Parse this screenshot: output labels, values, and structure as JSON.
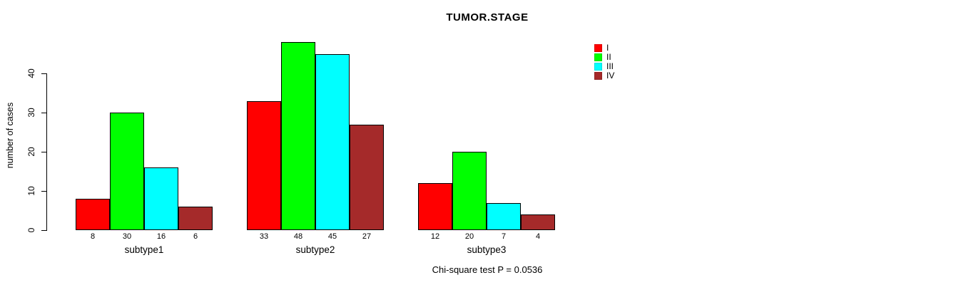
{
  "title": "TUMOR.STAGE",
  "ylabel": "number of cases",
  "footer": "Chi-square test P = 0.0536",
  "chart_data": {
    "type": "bar",
    "title": "TUMOR.STAGE",
    "xlabel": "",
    "ylabel": "number of cases",
    "categories": [
      "subtype1",
      "subtype2",
      "subtype3"
    ],
    "series": [
      {
        "name": "I",
        "color": "#FF0000",
        "values": [
          8,
          33,
          12
        ]
      },
      {
        "name": "II",
        "color": "#00FF00",
        "values": [
          30,
          48,
          20
        ]
      },
      {
        "name": "III",
        "color": "#00FFFF",
        "values": [
          16,
          45,
          7
        ]
      },
      {
        "name": "IV",
        "color": "#A52A2A",
        "values": [
          6,
          27,
          4
        ]
      }
    ],
    "bar_value_labels_shown": true,
    "yticks": [
      0,
      10,
      20,
      30,
      40
    ],
    "ylim": [
      0,
      48
    ],
    "grid": false,
    "legend_position": "top-right",
    "annotation": "Chi-square test P = 0.0536"
  }
}
